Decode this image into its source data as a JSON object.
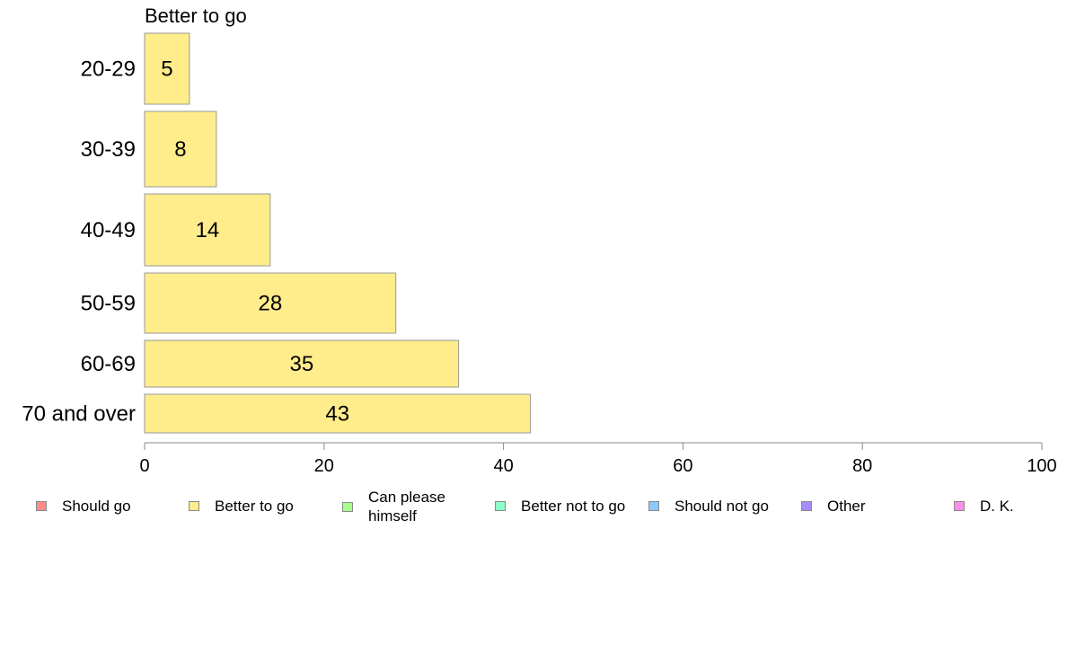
{
  "chart_data": {
    "type": "bar",
    "orientation": "horizontal",
    "title": "Better to go",
    "categories": [
      "20-29",
      "30-39",
      "40-49",
      "50-59",
      "60-69",
      "70 and over"
    ],
    "series": [
      {
        "name": "Better to go",
        "color": "#ffec8b",
        "values": [
          5,
          8,
          14,
          28,
          35,
          43
        ]
      }
    ],
    "data_labels": [
      "5",
      "8",
      "14",
      "28",
      "35",
      "43"
    ],
    "xlim": [
      0,
      100
    ],
    "x_ticks": [
      0,
      20,
      40,
      60,
      80,
      100
    ],
    "x_tick_labels": [
      "0",
      "20",
      "40",
      "60",
      "80",
      "100"
    ],
    "grid": false,
    "legend_position": "bottom",
    "legend": [
      {
        "label": "Should go",
        "color": "#ff8c8c"
      },
      {
        "label": "Better to go",
        "color": "#ffec8b"
      },
      {
        "label": "Can please himself",
        "color": "#a8ff8c"
      },
      {
        "label": "Better not to go",
        "color": "#8cffc8"
      },
      {
        "label": "Should not go",
        "color": "#8cc8ff"
      },
      {
        "label": "Other",
        "color": "#a88cff"
      },
      {
        "label": "D. K.",
        "color": "#ff8ce8"
      }
    ]
  }
}
